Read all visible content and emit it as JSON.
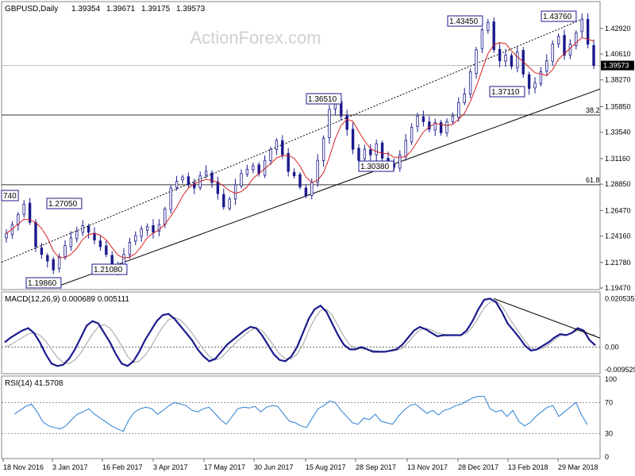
{
  "header": {
    "symbol": "GBPUSD,Daily",
    "open": "1.39354",
    "high": "1.39671",
    "low": "1.39175",
    "close": "1.39573"
  },
  "watermark": "ActionForex.com",
  "colors": {
    "candle": "#1a1a8c",
    "ma": "#d42020",
    "macd": "#1a1a8c",
    "signal": "#a0a0a0",
    "rsi": "#2a7fd4",
    "level": "#333333"
  },
  "chart_data": [
    {
      "type": "candlestick",
      "panel": "price",
      "ylim": [
        1.1947,
        1.442
      ],
      "y_ticks": [
        "1.42920",
        "1.40610",
        "1.38270",
        "1.35850",
        "1.33540",
        "1.31160",
        "1.28850",
        "1.26470",
        "1.24160",
        "1.21780",
        "1.19470"
      ],
      "current_price": "1.39573",
      "x_labels": [
        "18 Nov 2016",
        "3 Jan 2017",
        "16 Feb 2017",
        "3 Apr 2017",
        "17 May 2017",
        "30 Jun 2017",
        "15 Aug 2017",
        "28 Sep 2017",
        "13 Nov 2017",
        "28 Dec 2017",
        "13 Feb 2018",
        "29 Mar 2018"
      ],
      "annotations": [
        "1.43760",
        "1.43450",
        "1.36510",
        "1.37110",
        "1.30380",
        "1.27050",
        "1.21080",
        "1.19860",
        "740"
      ],
      "fib_levels": [
        {
          "label": "38.2",
          "value": 1.351
        },
        {
          "label": "61.8",
          "value": 1.288
        }
      ],
      "close_series": [
        1.244,
        1.252,
        1.261,
        1.2705,
        1.254,
        1.232,
        1.225,
        1.219,
        1.211,
        1.223,
        1.233,
        1.24,
        1.246,
        1.251,
        1.245,
        1.238,
        1.232,
        1.225,
        1.216,
        1.2108,
        1.225,
        1.236,
        1.242,
        1.248,
        1.25,
        1.245,
        1.252,
        1.266,
        1.285,
        1.291,
        1.295,
        1.288,
        1.285,
        1.296,
        1.3,
        1.29,
        1.28,
        1.268,
        1.275,
        1.288,
        1.298,
        1.302,
        1.305,
        1.298,
        1.31,
        1.32,
        1.328,
        1.315,
        1.3,
        1.296,
        1.286,
        1.278,
        1.29,
        1.31,
        1.33,
        1.356,
        1.362,
        1.35,
        1.338,
        1.32,
        1.31,
        1.32,
        1.315,
        1.325,
        1.312,
        1.308,
        1.3038,
        1.315,
        1.328,
        1.34,
        1.35,
        1.345,
        1.338,
        1.344,
        1.335,
        1.345,
        1.35,
        1.362,
        1.37,
        1.39,
        1.41,
        1.428,
        1.4345,
        1.41,
        1.4,
        1.405,
        1.395,
        1.408,
        1.388,
        1.375,
        1.38,
        1.39,
        1.4,
        1.415,
        1.422,
        1.405,
        1.415,
        1.425,
        1.4376,
        1.415,
        1.3957
      ]
    },
    {
      "type": "line",
      "panel": "macd",
      "title": "MACD(12,26,9) 0.000689 0.005111",
      "y_ticks": [
        "0.020535",
        "0.00",
        "-0.009529"
      ],
      "ylim": [
        -0.0106,
        0.0213
      ],
      "series": [
        {
          "values": [
            0.002,
            0.004,
            0.0055,
            0.007,
            0.008,
            0.006,
            0.002,
            -0.003,
            -0.007,
            -0.008,
            -0.0075,
            -0.005,
            -0.001,
            0.004,
            0.009,
            0.011,
            0.01,
            0.006,
            0.002,
            -0.003,
            -0.007,
            -0.008,
            -0.006,
            -0.002,
            0.003,
            0.007,
            0.011,
            0.0135,
            0.014,
            0.012,
            0.009,
            0.006,
            0.003,
            -0.001,
            -0.004,
            -0.006,
            -0.005,
            -0.002,
            0.001,
            0.003,
            0.005,
            0.007,
            0.0085,
            0.008,
            0.005,
            0.001,
            -0.003,
            -0.0055,
            -0.006,
            -0.004,
            0.0,
            0.006,
            0.012,
            0.016,
            0.0175,
            0.015,
            0.01,
            0.005,
            0.001,
            -0.001,
            -0.001,
            0.0,
            -0.001,
            -0.002,
            -0.002,
            -0.002,
            -0.0015,
            -0.001,
            0.001,
            0.004,
            0.007,
            0.0085,
            0.0075,
            0.006,
            0.0045,
            0.005,
            0.005,
            0.005,
            0.005,
            0.007,
            0.011,
            0.016,
            0.02,
            0.0205,
            0.019,
            0.015,
            0.01,
            0.007,
            0.004,
            0.0005,
            -0.0015,
            -0.001,
            0.0005,
            0.002,
            0.004,
            0.0055,
            0.005,
            0.006,
            0.008,
            0.007,
            0.003,
            0.0007
          ]
        },
        {
          "values": [
            0.0,
            0.001,
            0.0025,
            0.004,
            0.0055,
            0.006,
            0.005,
            0.0025,
            -0.001,
            -0.0045,
            -0.0065,
            -0.007,
            -0.0055,
            -0.0025,
            0.0015,
            0.0055,
            0.0085,
            0.0095,
            0.008,
            0.0045,
            0.0005,
            -0.004,
            -0.0065,
            -0.006,
            -0.0035,
            0.0,
            0.0045,
            0.0085,
            0.0115,
            0.0125,
            0.0115,
            0.009,
            0.006,
            0.0025,
            -0.001,
            -0.004,
            -0.0055,
            -0.0045,
            -0.002,
            0.0005,
            0.003,
            0.005,
            0.007,
            0.008,
            0.007,
            0.004,
            0.0005,
            -0.003,
            -0.005,
            -0.005,
            -0.003,
            0.001,
            0.007,
            0.012,
            0.0155,
            0.016,
            0.0135,
            0.009,
            0.0045,
            0.001,
            -0.0005,
            -0.0008,
            -0.001,
            -0.0015,
            -0.0018,
            -0.002,
            -0.0018,
            -0.0014,
            -0.0005,
            0.002,
            0.005,
            0.0072,
            0.008,
            0.0072,
            0.006,
            0.0054,
            0.0052,
            0.0051,
            0.0051,
            0.0058,
            0.0085,
            0.0125,
            0.0165,
            0.019,
            0.0195,
            0.0175,
            0.0135,
            0.0095,
            0.006,
            0.0025,
            -0.0005,
            -0.0012,
            -0.0005,
            0.001,
            0.003,
            0.0048,
            0.0052,
            0.0058,
            0.007,
            0.007,
            0.0055,
            0.0051
          ]
        }
      ],
      "trendline_values": [
        0.0205,
        0.0038
      ]
    },
    {
      "type": "line",
      "panel": "rsi",
      "title": "RSI(14) 41.5708",
      "y_ticks": [
        "100",
        "70",
        "30",
        "0"
      ],
      "ylim": [
        0,
        100
      ],
      "series": [
        {
          "values": [
            55,
            60,
            65,
            68,
            58,
            45,
            40,
            38,
            36,
            40,
            48,
            55,
            58,
            62,
            55,
            50,
            45,
            40,
            36,
            33,
            48,
            58,
            62,
            64,
            62,
            55,
            60,
            66,
            70,
            68,
            66,
            60,
            58,
            62,
            64,
            56,
            48,
            42,
            52,
            62,
            64,
            63,
            65,
            58,
            64,
            66,
            65,
            55,
            46,
            44,
            40,
            38,
            50,
            62,
            66,
            72,
            70,
            60,
            52,
            44,
            42,
            50,
            48,
            55,
            46,
            44,
            42,
            52,
            60,
            66,
            68,
            62,
            56,
            60,
            54,
            60,
            62,
            66,
            68,
            72,
            76,
            78,
            78,
            62,
            58,
            60,
            52,
            60,
            46,
            40,
            44,
            52,
            58,
            64,
            66,
            52,
            58,
            64,
            70,
            54,
            41.57
          ]
        }
      ]
    }
  ]
}
